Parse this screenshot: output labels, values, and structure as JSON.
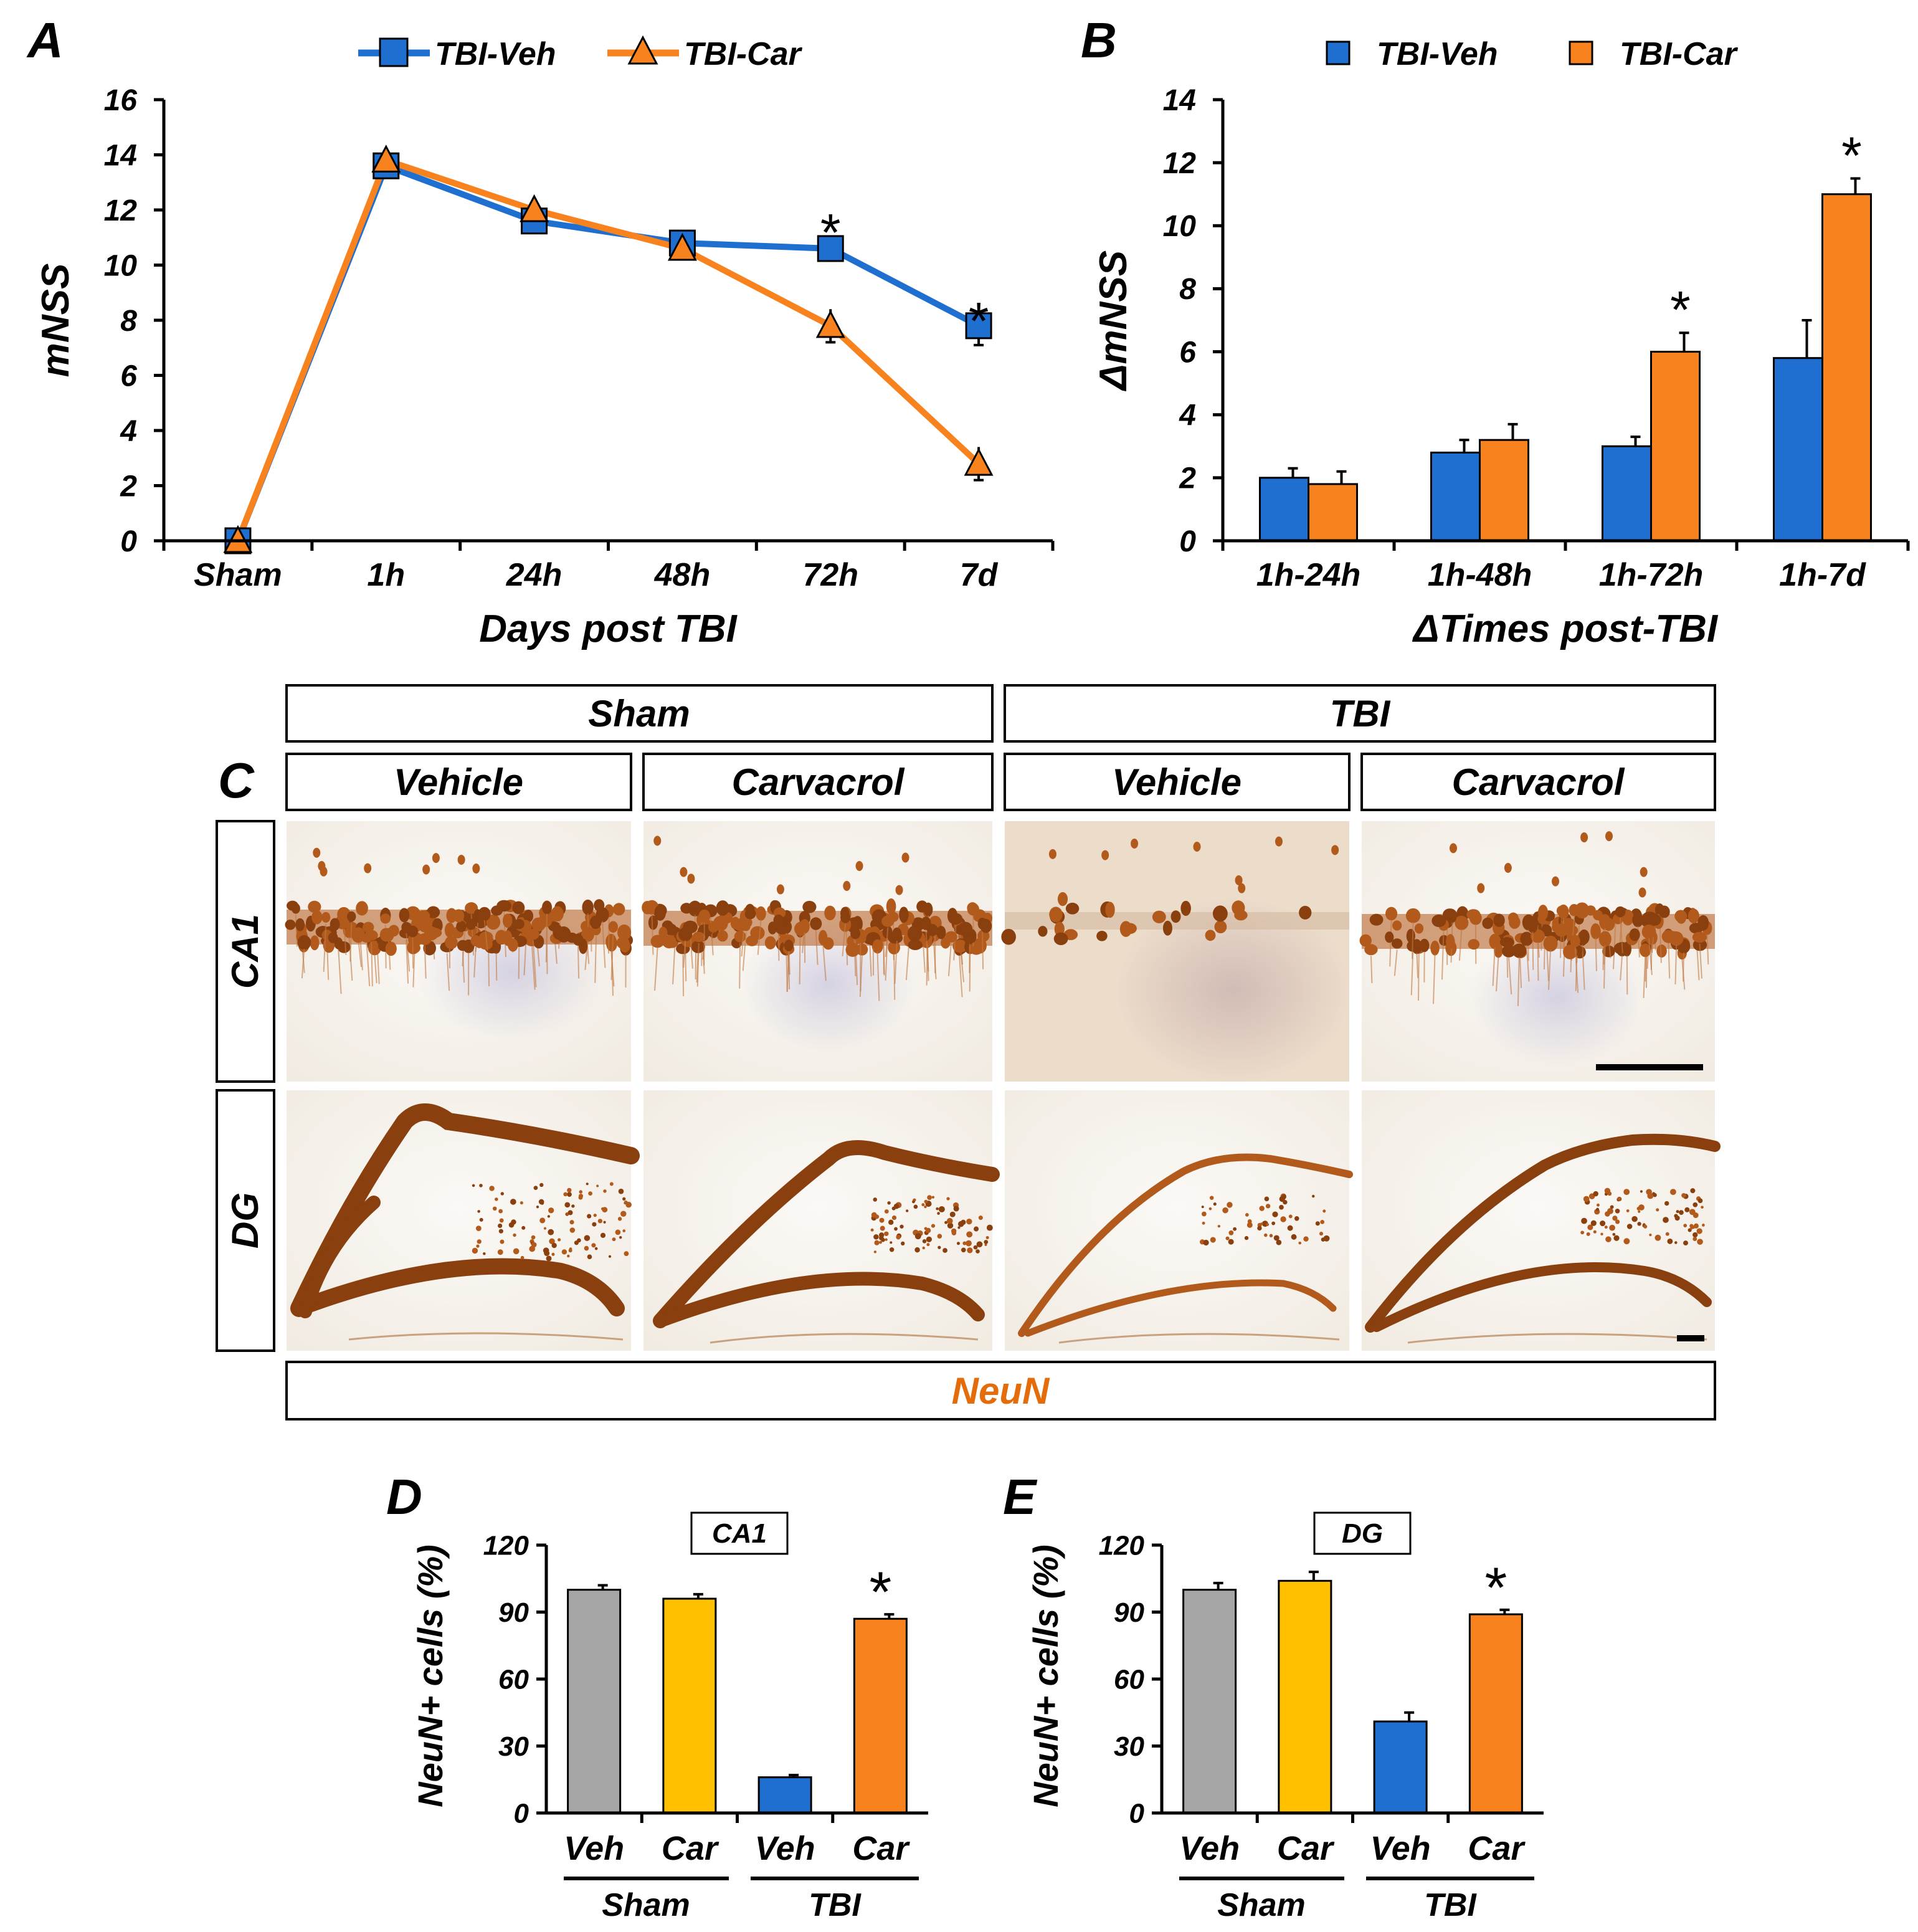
{
  "colors": {
    "veh": "#1f6fd1",
    "car": "#f7821e",
    "sham_veh": "#a6a6a6",
    "sham_car": "#ffc000",
    "neun": "#e46c0a",
    "stain_dark": "#8a3f0e",
    "stain_mid": "#b25a1c",
    "tissue_bg": "#f2ede6"
  },
  "panel_labels": {
    "a": "A",
    "b": "B",
    "c": "C",
    "d": "D",
    "e": "E"
  },
  "significance_marker": "*",
  "chart_data": [
    {
      "id": "A",
      "type": "line",
      "title": "",
      "categories": [
        "Sham",
        "1h",
        "24h",
        "48h",
        "72h",
        "7d"
      ],
      "xlabel": "Days post TBI",
      "ylabel": "mNSS",
      "ylim": [
        0,
        16
      ],
      "yticks": [
        0,
        2,
        4,
        6,
        8,
        10,
        12,
        14,
        16
      ],
      "legend_position": "top",
      "series": [
        {
          "name": "TBI-Veh",
          "color": "#1f6fd1",
          "marker": "square",
          "values": [
            0,
            13.6,
            11.6,
            10.8,
            10.6,
            7.8
          ],
          "errors": [
            0,
            0.3,
            0.4,
            0.3,
            0.3,
            0.7
          ],
          "significant": [
            false,
            false,
            false,
            false,
            false,
            false
          ]
        },
        {
          "name": "TBI-Car",
          "color": "#f7821e",
          "marker": "triangle",
          "values": [
            0,
            13.8,
            12.0,
            10.6,
            7.8,
            2.8
          ],
          "errors": [
            0,
            0.3,
            0.3,
            0.3,
            0.6,
            0.6
          ],
          "significant": [
            false,
            false,
            false,
            false,
            true,
            true
          ]
        }
      ]
    },
    {
      "id": "B",
      "type": "bar",
      "title": "",
      "categories": [
        "1h-24h",
        "1h-48h",
        "1h-72h",
        "1h-7d"
      ],
      "xlabel": "ΔTimes post-TBI",
      "ylabel": "ΔmNSS",
      "ylim": [
        0,
        14
      ],
      "yticks": [
        0,
        2,
        4,
        6,
        8,
        10,
        12,
        14
      ],
      "legend_position": "top",
      "series": [
        {
          "name": "TBI-Veh",
          "color": "#1f6fd1",
          "values": [
            2.0,
            2.8,
            3.0,
            5.8
          ],
          "errors": [
            0.3,
            0.4,
            0.3,
            1.2
          ],
          "significant": [
            false,
            false,
            false,
            false
          ]
        },
        {
          "name": "TBI-Car",
          "color": "#f7821e",
          "values": [
            1.8,
            3.2,
            6.0,
            11.0
          ],
          "errors": [
            0.4,
            0.5,
            0.6,
            0.5
          ],
          "significant": [
            false,
            false,
            true,
            true
          ]
        }
      ]
    },
    {
      "id": "D",
      "type": "bar",
      "title": "CA1",
      "categories": [
        "Veh",
        "Car",
        "Veh",
        "Car"
      ],
      "groups": [
        "Sham",
        "TBI"
      ],
      "ylabel": "NeuN+ cells (%)",
      "ylim": [
        0,
        120
      ],
      "yticks": [
        0,
        30,
        60,
        90,
        120
      ],
      "values": [
        100,
        96,
        16,
        87
      ],
      "errors": [
        2,
        2,
        1,
        2
      ],
      "colors": [
        "#a6a6a6",
        "#ffc000",
        "#1f6fd1",
        "#f7821e"
      ],
      "significant": [
        false,
        false,
        false,
        true
      ]
    },
    {
      "id": "E",
      "type": "bar",
      "title": "DG",
      "categories": [
        "Veh",
        "Car",
        "Veh",
        "Car"
      ],
      "groups": [
        "Sham",
        "TBI"
      ],
      "ylabel": "NeuN+ cells (%)",
      "ylim": [
        0,
        120
      ],
      "yticks": [
        0,
        30,
        60,
        90,
        120
      ],
      "values": [
        100,
        104,
        41,
        89
      ],
      "errors": [
        3,
        4,
        4,
        2
      ],
      "colors": [
        "#a6a6a6",
        "#ffc000",
        "#1f6fd1",
        "#f7821e"
      ],
      "significant": [
        false,
        false,
        false,
        true
      ]
    }
  ],
  "panel_c": {
    "group_headers": [
      "Sham",
      "TBI"
    ],
    "treatment_headers": [
      "Vehicle",
      "Carvacrol",
      "Vehicle",
      "Carvacrol"
    ],
    "row_labels": [
      "CA1",
      "DG"
    ],
    "stain_label": "NeuN"
  }
}
